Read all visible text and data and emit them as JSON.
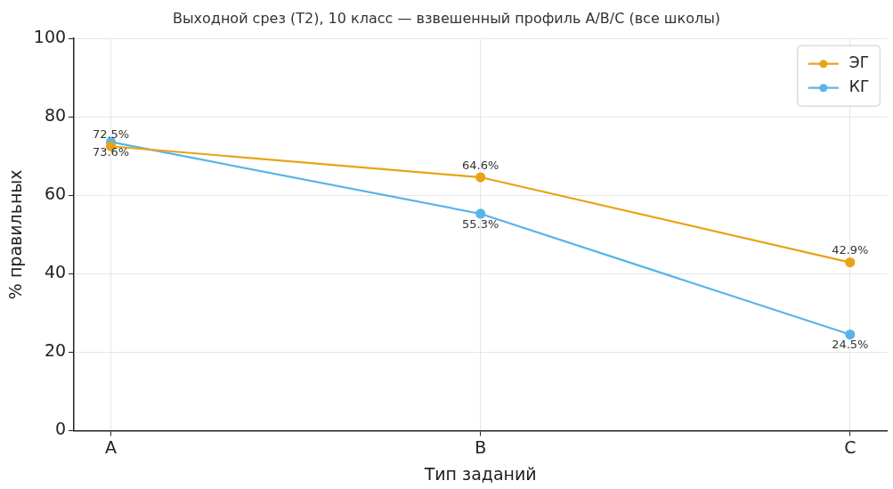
{
  "chart_data": {
    "type": "line",
    "title": "Выходной срез (Т2), 10 класс — взвешенный профиль A/B/C (все школы)",
    "xlabel": "Тип заданий",
    "ylabel": "% правильных",
    "categories": [
      "A",
      "B",
      "C"
    ],
    "series": [
      {
        "name": "ЭГ",
        "color": "#e8a317",
        "values": [
          72.5,
          64.6,
          42.9
        ],
        "value_labels": [
          "72.5%",
          "64.6%",
          "42.9%"
        ]
      },
      {
        "name": "КГ",
        "color": "#5ab4e8",
        "values": [
          73.6,
          55.3,
          24.5
        ],
        "value_labels": [
          "73.6%",
          "55.3%",
          "24.5%"
        ]
      }
    ],
    "ylim": [
      0,
      100
    ],
    "yticks": [
      0,
      20,
      40,
      60,
      80,
      100
    ],
    "grid": true,
    "legend": "top right",
    "marker": "circle",
    "line_style": "solid"
  }
}
